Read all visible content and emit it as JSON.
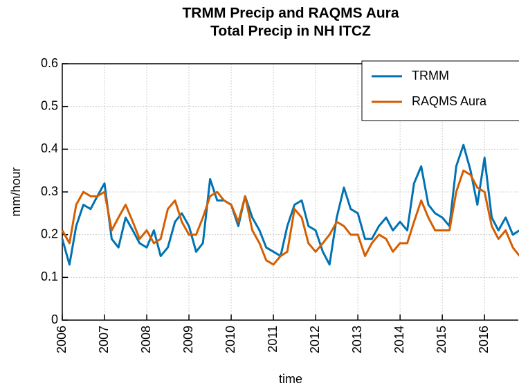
{
  "chart_data": {
    "type": "line",
    "title": [
      "TRMM Precip and RAQMS Aura",
      "Total Precip in NH ITCZ"
    ],
    "y_label": "mm/hour",
    "x_label": "time",
    "x": [
      2006.0,
      2006.17,
      2006.33,
      2006.5,
      2006.67,
      2006.83,
      2007.0,
      2007.17,
      2007.33,
      2007.5,
      2007.67,
      2007.83,
      2008.0,
      2008.17,
      2008.33,
      2008.5,
      2008.67,
      2008.83,
      2009.0,
      2009.17,
      2009.33,
      2009.5,
      2009.67,
      2009.83,
      2010.0,
      2010.17,
      2010.33,
      2010.5,
      2010.67,
      2010.83,
      2011.0,
      2011.17,
      2011.33,
      2011.5,
      2011.67,
      2011.83,
      2012.0,
      2012.17,
      2012.33,
      2012.5,
      2012.67,
      2012.83,
      2013.0,
      2013.17,
      2013.33,
      2013.5,
      2013.67,
      2013.83,
      2014.0,
      2014.17,
      2014.33,
      2014.5,
      2014.67,
      2014.83,
      2015.0,
      2015.17,
      2015.33,
      2015.5,
      2015.67,
      2015.83,
      2016.0,
      2016.17,
      2016.33,
      2016.5,
      2016.67,
      2016.83
    ],
    "series": [
      {
        "name": "TRMM",
        "color": "#0072b2",
        "values": [
          0.19,
          0.13,
          0.22,
          0.27,
          0.26,
          0.29,
          0.32,
          0.19,
          0.17,
          0.24,
          0.21,
          0.18,
          0.17,
          0.21,
          0.15,
          0.17,
          0.23,
          0.25,
          0.22,
          0.16,
          0.18,
          0.33,
          0.28,
          0.28,
          0.27,
          0.22,
          0.29,
          0.24,
          0.21,
          0.17,
          0.16,
          0.15,
          0.22,
          0.27,
          0.28,
          0.22,
          0.21,
          0.16,
          0.13,
          0.24,
          0.31,
          0.26,
          0.25,
          0.19,
          0.19,
          0.22,
          0.24,
          0.21,
          0.23,
          0.21,
          0.32,
          0.36,
          0.27,
          0.25,
          0.24,
          0.22,
          0.36,
          0.41,
          0.35,
          0.27,
          0.38,
          0.24,
          0.21,
          0.24,
          0.2,
          0.21
        ]
      },
      {
        "name": "RAQMS Aura",
        "color": "#d55e00",
        "values": [
          0.21,
          0.18,
          0.27,
          0.3,
          0.29,
          0.29,
          0.3,
          0.21,
          0.24,
          0.27,
          0.23,
          0.19,
          0.21,
          0.18,
          0.19,
          0.26,
          0.28,
          0.23,
          0.2,
          0.2,
          0.24,
          0.29,
          0.3,
          0.28,
          0.27,
          0.23,
          0.29,
          0.21,
          0.18,
          0.14,
          0.13,
          0.15,
          0.16,
          0.26,
          0.24,
          0.18,
          0.16,
          0.18,
          0.2,
          0.23,
          0.22,
          0.2,
          0.2,
          0.15,
          0.18,
          0.2,
          0.19,
          0.16,
          0.18,
          0.18,
          0.23,
          0.28,
          0.24,
          0.21,
          0.21,
          0.21,
          0.3,
          0.35,
          0.34,
          0.31,
          0.3,
          0.22,
          0.19,
          0.21,
          0.17,
          0.15
        ]
      }
    ],
    "xlim": [
      2006,
      2016.8
    ],
    "xticks": [
      2006,
      2007,
      2008,
      2009,
      2010,
      2011,
      2012,
      2013,
      2014,
      2015,
      2016
    ],
    "ylim": [
      0,
      0.6
    ],
    "yticks": [
      0,
      0.1,
      0.2,
      0.3,
      0.4,
      0.5,
      0.6
    ],
    "grid": true,
    "legend": "upper right"
  }
}
